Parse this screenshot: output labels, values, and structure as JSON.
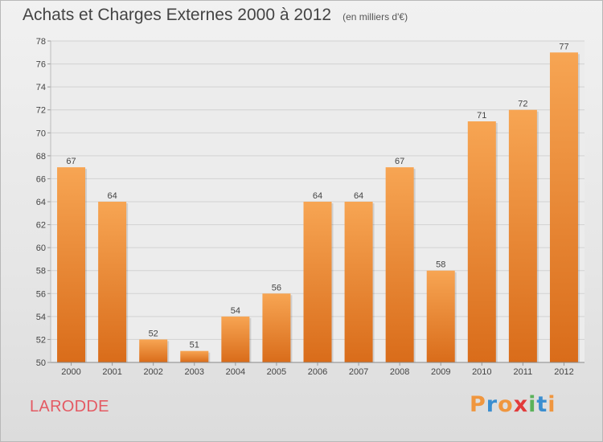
{
  "chart_data": {
    "type": "bar",
    "title": "Achats et Charges Externes 2000 à 2012",
    "subtitle": "(en milliers d'€)",
    "categories": [
      "2000",
      "2001",
      "2002",
      "2003",
      "2004",
      "2005",
      "2006",
      "2007",
      "2008",
      "2009",
      "2010",
      "2011",
      "2012"
    ],
    "values": [
      67,
      64,
      52,
      51,
      54,
      56,
      64,
      64,
      67,
      58,
      71,
      72,
      77
    ],
    "ylim": [
      50,
      78
    ],
    "yticks": [
      "50",
      "52",
      "54",
      "56",
      "58",
      "60",
      "62",
      "64",
      "66",
      "68",
      "70",
      "72",
      "74",
      "76",
      "78"
    ],
    "grid": true,
    "legend": "none",
    "bar_color": "#f0963e"
  },
  "commune": "LARODDE",
  "logo": {
    "text": "Proxiti",
    "colors": [
      "#f0963e",
      "#3a8ed0",
      "#f0963e",
      "#e23b3b",
      "#5ab25a",
      "#3a8ed0",
      "#f0963e"
    ]
  }
}
